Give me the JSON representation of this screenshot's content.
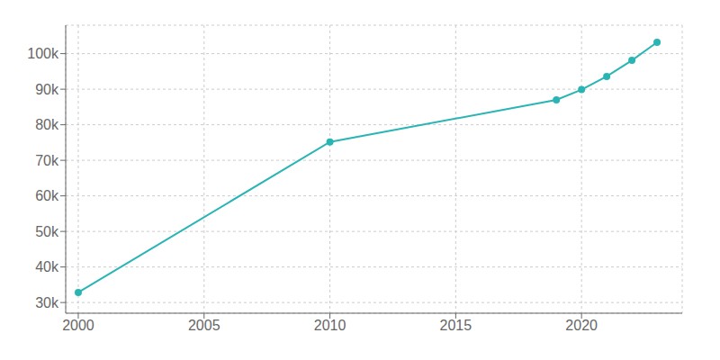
{
  "chart_data": {
    "type": "line",
    "x": [
      2000,
      2010,
      2019,
      2020,
      2021,
      2022,
      2023
    ],
    "values": [
      32832,
      75180,
      87000,
      89874,
      93600,
      98100,
      103190
    ],
    "color": "#2ab5b5",
    "marker": "circle",
    "xlim": [
      1999.5,
      2024.0
    ],
    "xticks": [
      2000,
      2005,
      2010,
      2015,
      2020
    ],
    "ylim": [
      27000,
      108000
    ],
    "yticks": [
      {
        "value": 30000,
        "label": "30k"
      },
      {
        "value": 40000,
        "label": "40k"
      },
      {
        "value": 50000,
        "label": "50k"
      },
      {
        "value": 60000,
        "label": "60k"
      },
      {
        "value": 70000,
        "label": "70k"
      },
      {
        "value": 80000,
        "label": "80k"
      },
      {
        "value": 90000,
        "label": "90k"
      },
      {
        "value": 100000,
        "label": "100k"
      }
    ],
    "grid": true
  }
}
